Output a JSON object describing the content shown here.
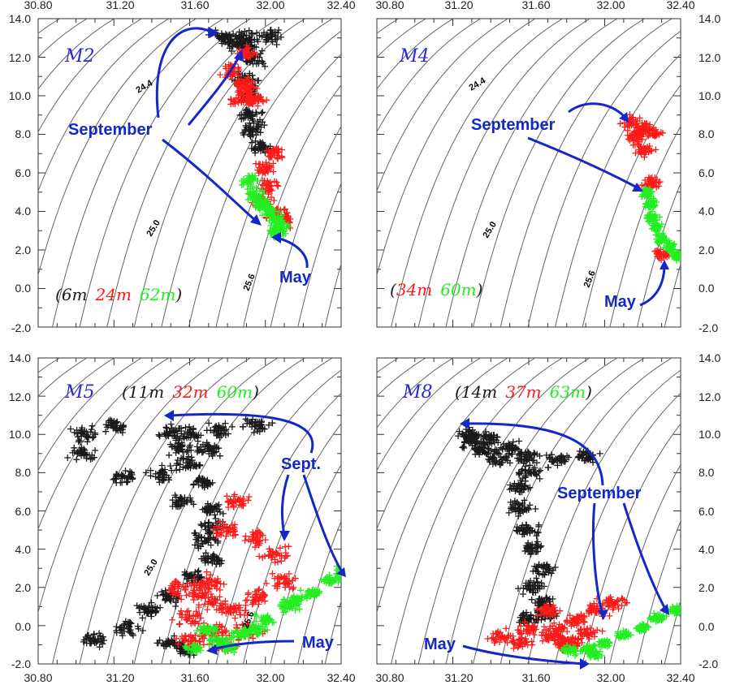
{
  "colors": {
    "shallow": "#1a1a1a",
    "mid": "#ff1a1a",
    "deep": "#22ee22",
    "annotation": "#1428c8",
    "isopycnal": "#666666"
  },
  "axes": {
    "xlim": [
      30.8,
      32.4
    ],
    "ylim": [
      -2.0,
      14.0
    ],
    "xticks": [
      "30.80",
      "31.20",
      "31.60",
      "32.00",
      "32.40"
    ],
    "yticks": [
      "-2.0",
      "0.0",
      "2.0",
      "4.0",
      "6.0",
      "8.0",
      "10.0",
      "12.0",
      "14.0"
    ]
  },
  "isopycnal_labels": {
    "a": "24.4",
    "b": "25.0",
    "c": "25.6"
  },
  "panels": {
    "m2": {
      "name": "M2",
      "depths": {
        "open": "(",
        "d1": "6m",
        "d2": "24m",
        "d3": "62m",
        "close": ")"
      },
      "annotations": {
        "a": "September",
        "b": "May"
      }
    },
    "m4": {
      "name": "M4",
      "depths": {
        "open": "(",
        "d1": "",
        "d2": "34m",
        "d3": "60m",
        "close": ")"
      },
      "annotations": {
        "a": "September",
        "b": "May"
      }
    },
    "m5": {
      "name": "M5",
      "depths": {
        "open": "(",
        "d1": "11m",
        "d2": "32m",
        "d3": "60m",
        "close": ")"
      },
      "annotations": {
        "a": "Sept.",
        "b": "May"
      }
    },
    "m8": {
      "name": "M8",
      "depths": {
        "open": "(",
        "d1": "14m",
        "d2": "37m",
        "d3": "63m",
        "close": ")"
      },
      "annotations": {
        "a": "September",
        "b": "May"
      }
    }
  },
  "chart_data": [
    {
      "type": "scatter",
      "title": "M2",
      "xlim": [
        30.8,
        32.4
      ],
      "ylim": [
        -2.0,
        14.0
      ],
      "xlabel": "",
      "ylabel": "",
      "series": [
        {
          "name": "6m",
          "color": "#1a1a1a",
          "points": [
            [
              31.78,
              13.0
            ],
            [
              31.9,
              13.0
            ],
            [
              32.02,
              13.1
            ],
            [
              31.9,
              12.5
            ],
            [
              31.95,
              11.9
            ],
            [
              31.9,
              10.8
            ],
            [
              31.92,
              10.0
            ],
            [
              31.92,
              9.0
            ],
            [
              31.92,
              8.2
            ],
            [
              31.97,
              7.3
            ],
            [
              31.85,
              12.7
            ]
          ],
          "spread": [
            0.06,
            0.35
          ]
        },
        {
          "name": "24m",
          "color": "#ff1a1a",
          "points": [
            [
              31.82,
              11.3
            ],
            [
              31.88,
              10.6
            ],
            [
              31.9,
              10.3
            ],
            [
              31.88,
              9.8
            ],
            [
              31.95,
              9.8
            ],
            [
              32.05,
              7.0
            ],
            [
              32.0,
              6.2
            ],
            [
              32.02,
              5.3
            ],
            [
              31.98,
              4.6
            ],
            [
              32.05,
              4.0
            ],
            [
              32.1,
              3.6
            ],
            [
              31.9,
              12.2
            ]
          ],
          "spread": [
            0.05,
            0.35
          ]
        },
        {
          "name": "62m",
          "color": "#22ee22",
          "points": [
            [
              31.92,
              5.6
            ],
            [
              31.95,
              4.9
            ],
            [
              31.98,
              4.4
            ],
            [
              32.02,
              4.0
            ],
            [
              32.05,
              3.6
            ],
            [
              32.08,
              3.2
            ],
            [
              32.05,
              2.9
            ]
          ],
          "spread": [
            0.04,
            0.3
          ]
        }
      ]
    },
    {
      "type": "scatter",
      "title": "M4",
      "xlim": [
        30.8,
        32.4
      ],
      "ylim": [
        -2.0,
        14.0
      ],
      "xlabel": "",
      "ylabel": "",
      "series": [
        {
          "name": "34m",
          "color": "#ff1a1a",
          "points": [
            [
              32.15,
              8.6
            ],
            [
              32.2,
              8.3
            ],
            [
              32.25,
              8.1
            ],
            [
              32.17,
              7.9
            ],
            [
              32.2,
              7.2
            ],
            [
              32.3,
              1.8
            ],
            [
              32.25,
              5.5
            ]
          ],
          "spread": [
            0.05,
            0.3
          ]
        },
        {
          "name": "60m",
          "color": "#22ee22",
          "points": [
            [
              32.22,
              5.0
            ],
            [
              32.24,
              4.4
            ],
            [
              32.25,
              3.7
            ],
            [
              32.27,
              3.2
            ],
            [
              32.3,
              2.6
            ],
            [
              32.34,
              2.2
            ],
            [
              32.38,
              1.7
            ]
          ],
          "spread": [
            0.03,
            0.25
          ]
        }
      ]
    },
    {
      "type": "scatter",
      "title": "M5",
      "xlim": [
        30.8,
        32.4
      ],
      "ylim": [
        -2.0,
        14.0
      ],
      "xlabel": "",
      "ylabel": "",
      "series": [
        {
          "name": "11m",
          "color": "#1a1a1a",
          "points": [
            [
              31.5,
              10.1
            ],
            [
              31.6,
              10.0
            ],
            [
              31.75,
              10.2
            ],
            [
              31.95,
              10.5
            ],
            [
              31.55,
              9.3
            ],
            [
              31.7,
              9.2
            ],
            [
              31.6,
              8.5
            ],
            [
              31.45,
              7.9
            ],
            [
              31.25,
              7.8
            ],
            [
              31.68,
              7.5
            ],
            [
              31.55,
              6.5
            ],
            [
              31.72,
              6.1
            ],
            [
              31.72,
              5.2
            ],
            [
              31.68,
              4.5
            ],
            [
              31.72,
              3.5
            ],
            [
              31.62,
              2.6
            ],
            [
              31.5,
              1.5
            ],
            [
              31.38,
              0.8
            ],
            [
              31.28,
              -0.1
            ],
            [
              31.1,
              -0.7
            ],
            [
              31.5,
              -0.9
            ],
            [
              31.58,
              -1.3
            ],
            [
              31.2,
              10.4
            ],
            [
              31.05,
              10.0
            ],
            [
              31.03,
              9.0
            ]
          ],
          "spread": [
            0.06,
            0.35
          ]
        },
        {
          "name": "32m",
          "color": "#ff1a1a",
          "points": [
            [
              31.65,
              1.8
            ],
            [
              31.72,
              1.2
            ],
            [
              31.6,
              0.4
            ],
            [
              31.72,
              -0.3
            ],
            [
              31.85,
              0.8
            ],
            [
              31.95,
              1.5
            ],
            [
              32.1,
              2.4
            ],
            [
              31.9,
              -0.2
            ],
            [
              31.8,
              -1.0
            ],
            [
              31.6,
              -0.8
            ],
            [
              31.8,
              5.0
            ],
            [
              31.95,
              4.6
            ],
            [
              32.05,
              3.7
            ],
            [
              31.85,
              6.5
            ],
            [
              31.55,
              1.9
            ],
            [
              31.7,
              2.3
            ]
          ],
          "spread": [
            0.07,
            0.4
          ]
        },
        {
          "name": "60m",
          "color": "#22ee22",
          "points": [
            [
              31.62,
              -1.2
            ],
            [
              31.75,
              -0.8
            ],
            [
              31.88,
              -0.4
            ],
            [
              32.0,
              0.3
            ],
            [
              32.12,
              1.0
            ],
            [
              32.25,
              1.7
            ],
            [
              32.35,
              2.4
            ],
            [
              32.42,
              2.9
            ],
            [
              31.8,
              -1.1
            ],
            [
              31.95,
              -0.2
            ],
            [
              32.15,
              1.3
            ],
            [
              31.7,
              -0.2
            ]
          ],
          "spread": [
            0.05,
            0.25
          ]
        }
      ]
    },
    {
      "type": "scatter",
      "title": "M8",
      "xlim": [
        30.8,
        32.4
      ],
      "ylim": [
        -2.0,
        14.0
      ],
      "xlabel": "",
      "ylabel": "",
      "series": [
        {
          "name": "14m",
          "color": "#1a1a1a",
          "points": [
            [
              31.3,
              10.0
            ],
            [
              31.4,
              9.8
            ],
            [
              31.35,
              9.2
            ],
            [
              31.5,
              9.3
            ],
            [
              31.45,
              8.8
            ],
            [
              31.6,
              8.8
            ],
            [
              31.75,
              8.7
            ],
            [
              31.9,
              8.8
            ],
            [
              31.6,
              8.0
            ],
            [
              31.55,
              7.2
            ],
            [
              31.55,
              6.2
            ],
            [
              31.6,
              5.0
            ],
            [
              31.62,
              4.0
            ],
            [
              31.68,
              3.0
            ],
            [
              31.62,
              2.0
            ],
            [
              31.68,
              1.2
            ],
            [
              31.6,
              0.4
            ],
            [
              31.7,
              0.6
            ],
            [
              31.3,
              9.6
            ]
          ],
          "spread": [
            0.06,
            0.35
          ]
        },
        {
          "name": "37m",
          "color": "#ff1a1a",
          "points": [
            [
              31.6,
              -0.2
            ],
            [
              31.72,
              -0.6
            ],
            [
              31.82,
              -0.8
            ],
            [
              31.92,
              -0.4
            ],
            [
              31.85,
              0.3
            ],
            [
              31.95,
              0.8
            ],
            [
              32.05,
              1.2
            ],
            [
              31.55,
              -0.9
            ],
            [
              31.75,
              -0.2
            ],
            [
              31.45,
              -0.6
            ],
            [
              31.7,
              0.8
            ],
            [
              31.8,
              -1.0
            ]
          ],
          "spread": [
            0.06,
            0.3
          ]
        },
        {
          "name": "63m",
          "color": "#22ee22",
          "points": [
            [
              31.82,
              -1.3
            ],
            [
              31.92,
              -1.2
            ],
            [
              32.0,
              -0.9
            ],
            [
              32.1,
              -0.5
            ],
            [
              32.2,
              -0.1
            ],
            [
              32.28,
              0.4
            ],
            [
              32.38,
              0.8
            ],
            [
              31.95,
              -1.5
            ]
          ],
          "spread": [
            0.04,
            0.2
          ]
        }
      ]
    }
  ]
}
